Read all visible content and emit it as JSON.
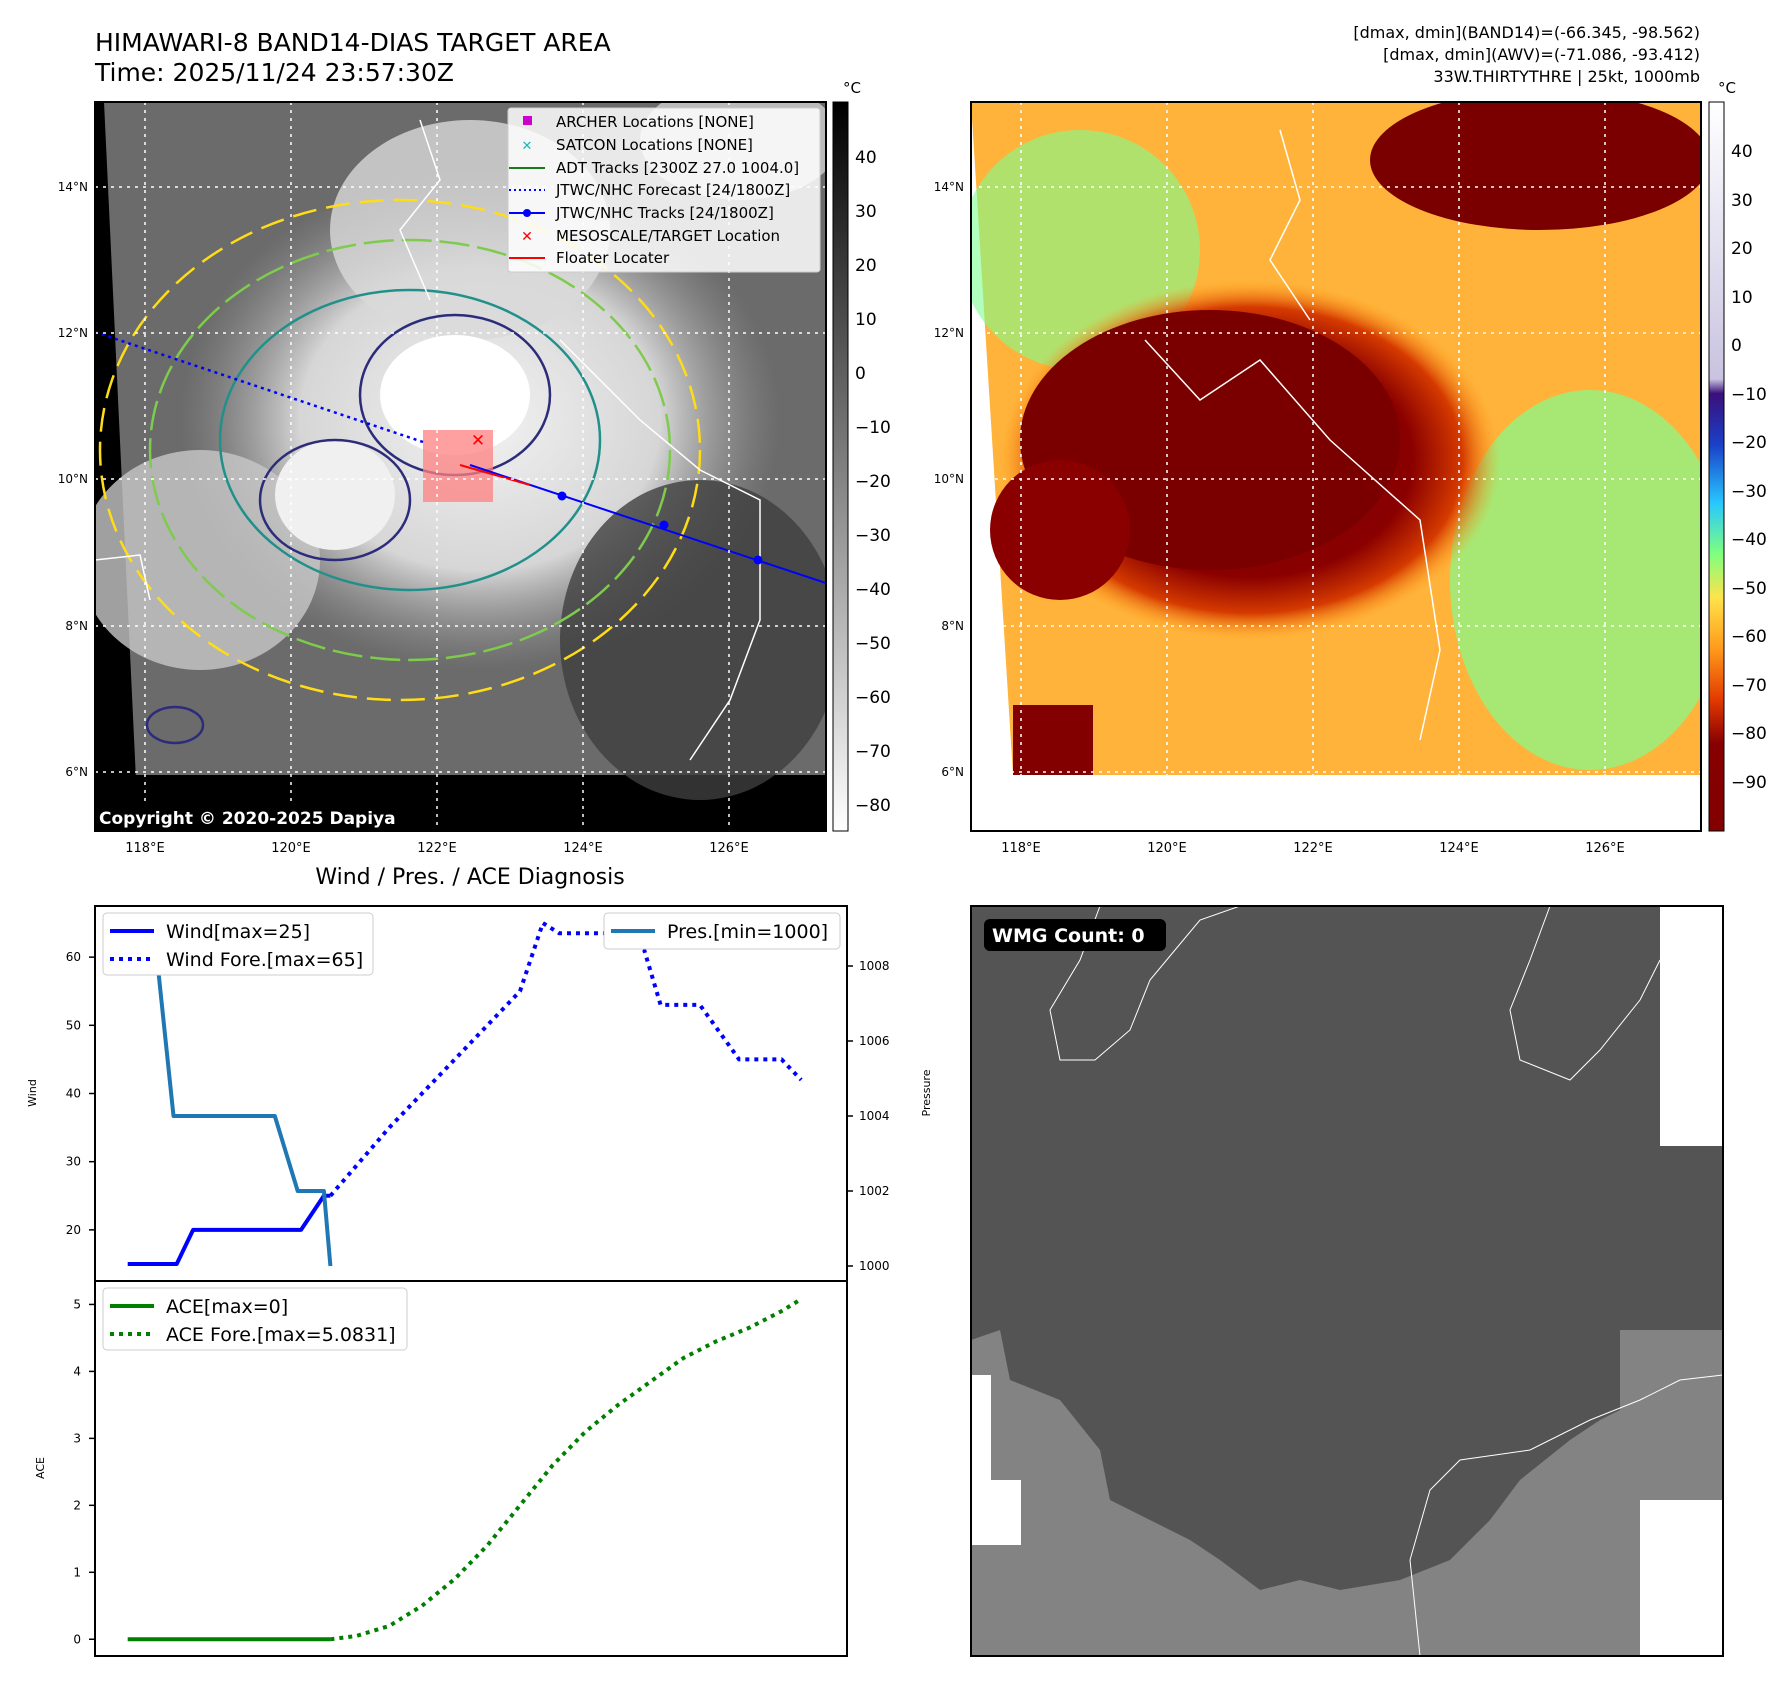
{
  "header": {
    "title_line1": "HIMAWARI-8 BAND14-DIAS TARGET AREA",
    "title_line2": "Time: 2025/11/24 23:57:30Z",
    "info_line1": "[dmax, dmin](BAND14)=(-66.345, -98.562)",
    "info_line2": "[dmax, dmin](AWV)=(-71.086, -93.412)",
    "info_line3": "33W.THIRTYTHRE | 25kt, 1000mb"
  },
  "map_axes": {
    "lat_labels": [
      "14°N",
      "12°N",
      "10°N",
      "8°N",
      "6°N"
    ],
    "lon_labels": [
      "118°E",
      "120°E",
      "122°E",
      "124°E",
      "126°E"
    ]
  },
  "ir_panel": {
    "copyright": "Copyright © 2020-2025 Dapiya",
    "colorbar_unit": "°C",
    "colorbar_ticks": [
      "40",
      "30",
      "20",
      "10",
      "0",
      "−10",
      "−20",
      "−30",
      "−40",
      "−50",
      "−60",
      "−70",
      "−80"
    ],
    "legend": [
      {
        "label": "ARCHER Locations [NONE]",
        "color": "#cc00cc",
        "marker": "square"
      },
      {
        "label": "SATCON Locations [NONE]",
        "color": "#19b8b8",
        "marker": "x"
      },
      {
        "label": "ADT Tracks [2300Z 27.0 1004.0]",
        "color": "#1a7a1a",
        "marker": "line"
      },
      {
        "label": "JTWC/NHC Forecast [24/1800Z]",
        "color": "#0000ff",
        "marker": "dotted"
      },
      {
        "label": "JTWC/NHC Tracks [24/1800Z]",
        "color": "#0000ff",
        "marker": "line-dot"
      },
      {
        "label": "MESOSCALE/TARGET Location",
        "color": "#ff0000",
        "marker": "x"
      },
      {
        "label": "Floater Locater",
        "color": "#ff0000",
        "marker": "line"
      }
    ]
  },
  "wv_panel": {
    "colorbar_unit": "°C",
    "colorbar_ticks": [
      "40",
      "30",
      "20",
      "10",
      "0",
      "−10",
      "−20",
      "−30",
      "−40",
      "−50",
      "−60",
      "−70",
      "−80",
      "−90"
    ]
  },
  "wmg_panel": {
    "badge": "WMG Count: 0"
  },
  "chart_data": [
    {
      "type": "line",
      "title": "Wind / Pres. / ACE Diagnosis",
      "ylabel": "Wind",
      "ylabel_right": "Pressure",
      "ylim": [
        12.5,
        67.5
      ],
      "ylim_right": [
        999.6,
        1009.6
      ],
      "xlim": [
        -1,
        22
      ],
      "yticks": [
        "20",
        "30",
        "40",
        "50",
        "60"
      ],
      "yticks_right": [
        "1000",
        "1002",
        "1004",
        "1006",
        "1008"
      ],
      "series": [
        {
          "name": "Wind[max=25]",
          "style": "solid",
          "color": "#0000ff",
          "axis": "left",
          "x": [
            0,
            1,
            1.5,
            2,
            2.2,
            5,
            5.3,
            6,
            6.2
          ],
          "y": [
            15,
            15,
            15,
            20,
            20,
            20,
            20,
            25,
            25
          ]
        },
        {
          "name": "Wind Fore.[max=65]",
          "style": "dotted",
          "color": "#0000ff",
          "axis": "left",
          "x": [
            6.2,
            8,
            10,
            12,
            12.7,
            13.2,
            15,
            15.8,
            16.3,
            17.5,
            18.1,
            18.7,
            20,
            20.6
          ],
          "y": [
            25,
            35,
            45,
            55,
            65,
            63.5,
            63.5,
            61,
            53,
            53,
            49,
            45,
            45,
            42
          ]
        },
        {
          "name": "Pres.[min=1000]",
          "style": "solid",
          "color": "#1f77b4",
          "axis": "right",
          "x": [
            0,
            0.8,
            1.4,
            4.5,
            5.2,
            6,
            6.2
          ],
          "y": [
            1009,
            1009,
            1004,
            1004,
            1002,
            1002,
            1000
          ]
        }
      ]
    },
    {
      "type": "line",
      "ylabel": "ACE",
      "ylim": [
        -0.25,
        5.35
      ],
      "xlim": [
        -1,
        22
      ],
      "yticks": [
        "0",
        "1",
        "2",
        "3",
        "4",
        "5"
      ],
      "series": [
        {
          "name": "ACE[max=0]",
          "style": "solid",
          "color": "#007f00",
          "x": [
            0,
            1,
            2,
            3,
            4,
            5,
            6,
            6.2
          ],
          "y": [
            0,
            0,
            0,
            0,
            0,
            0,
            0,
            0
          ]
        },
        {
          "name": "ACE Fore.[max=5.0831]",
          "style": "dotted",
          "color": "#007f00",
          "x": [
            6.2,
            7,
            8,
            9,
            10,
            11,
            12,
            13,
            14,
            15,
            16,
            17,
            18,
            19,
            20,
            20.6
          ],
          "y": [
            0,
            0.05,
            0.2,
            0.5,
            0.9,
            1.4,
            2.0,
            2.6,
            3.1,
            3.5,
            3.85,
            4.2,
            4.45,
            4.65,
            4.9,
            5.08
          ]
        }
      ]
    }
  ]
}
